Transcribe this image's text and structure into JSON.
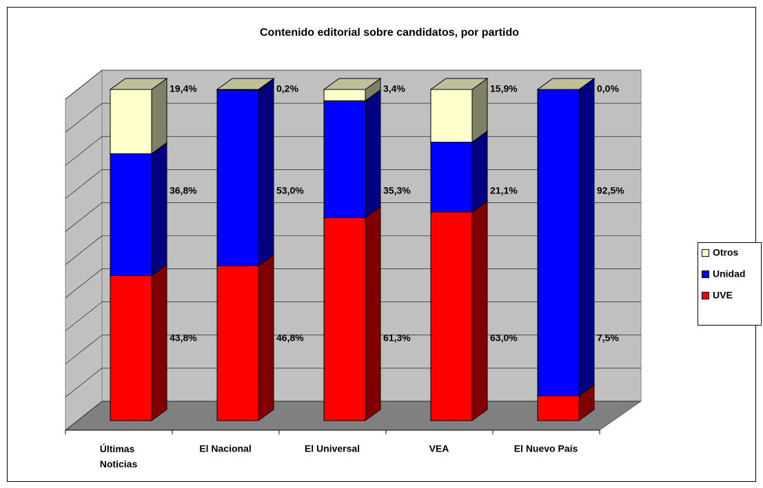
{
  "chart_data": {
    "type": "bar3d_stacked",
    "title": "Contenido editorial sobre candidatos, por partido",
    "categories": [
      "Últimas Noticias",
      "El Nacional",
      "El Universal",
      "VEA",
      "El Nuevo País"
    ],
    "series": [
      {
        "name": "UVE",
        "color": "#ff0000",
        "values": [
          43.8,
          46.8,
          61.3,
          63.0,
          7.5
        ],
        "value_labels": [
          "43,8%",
          "46,8%",
          "61,3%",
          "63,0%",
          "7,5%"
        ]
      },
      {
        "name": "Unidad",
        "color": "#0000ff",
        "values": [
          36.8,
          53.0,
          35.3,
          21.1,
          92.5
        ],
        "value_labels": [
          "36,8%",
          "53,0%",
          "35,3%",
          "21,1%",
          "92,5%"
        ]
      },
      {
        "name": "Otros",
        "color": "#ffffcc",
        "values": [
          19.4,
          0.2,
          3.4,
          15.9,
          0.0
        ],
        "value_labels": [
          "19,4%",
          "0,2%",
          "3,4%",
          "15,9%",
          "0,0%"
        ]
      }
    ],
    "ylim": [
      0,
      100
    ],
    "yticks": [
      0,
      10,
      20,
      30,
      40,
      50,
      60,
      70,
      80,
      90,
      100
    ],
    "grid": true,
    "legend": "right"
  }
}
